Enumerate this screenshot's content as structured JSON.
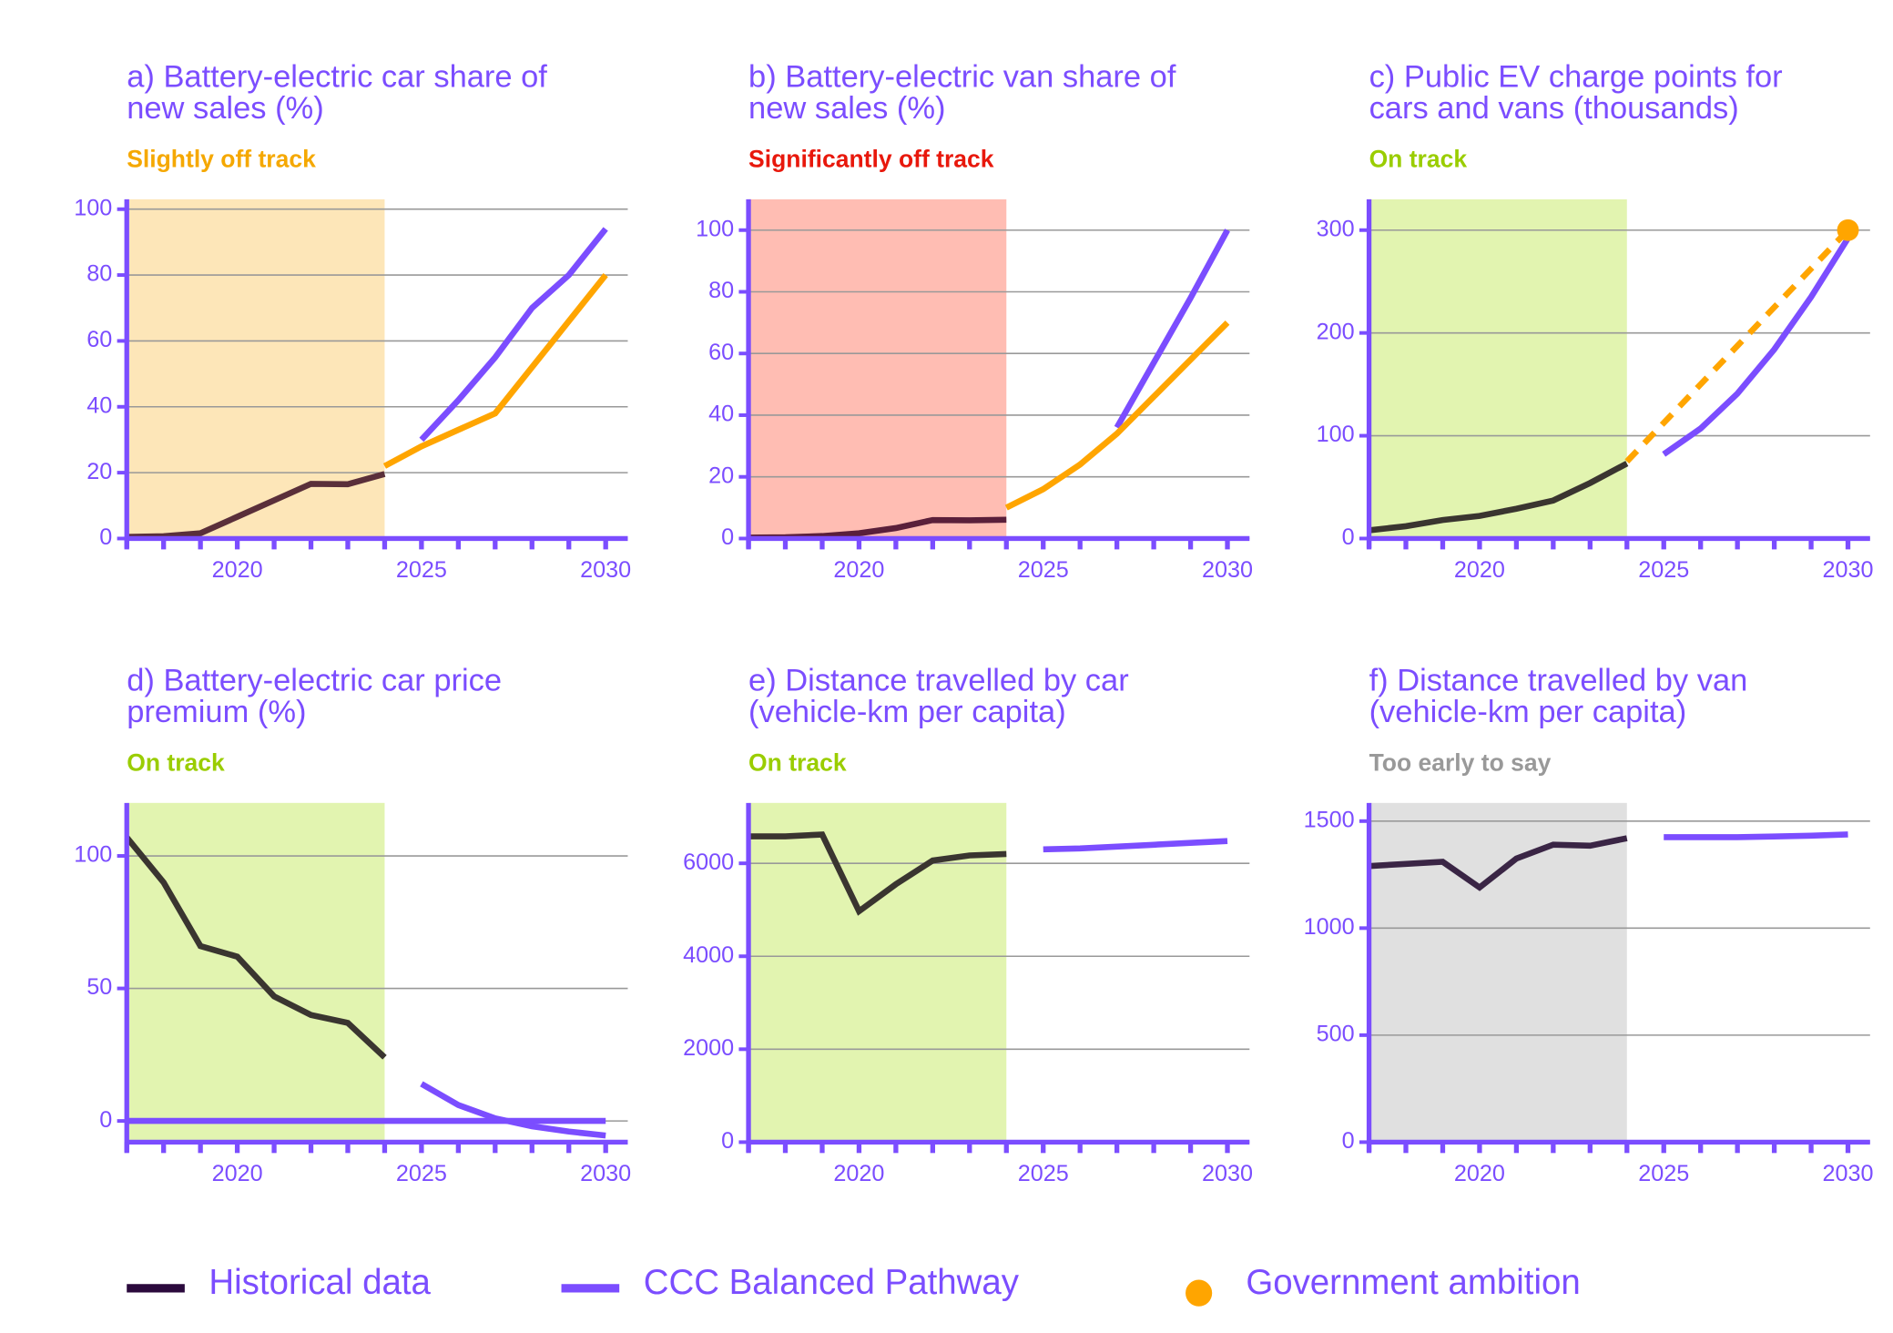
{
  "chart_data": [
    {
      "type": "line",
      "title": [
        "a) Battery-electric car share of",
        "new sales (%)"
      ],
      "status": "Slightly off track",
      "status_color": "#f5a800",
      "shade": [
        2017,
        2024
      ],
      "shade_color": "#fde6b8",
      "xlim": [
        2017,
        2030.6
      ],
      "xticks": [
        2020,
        2025,
        2030
      ],
      "xminorticks": [
        2017,
        2018,
        2019,
        2020,
        2021,
        2022,
        2023,
        2024,
        2025,
        2026,
        2027,
        2028,
        2029,
        2030
      ],
      "ylim": [
        0,
        103
      ],
      "yticks": [
        0,
        20,
        40,
        60,
        80,
        100
      ],
      "grid": true,
      "series": [
        {
          "name": "Historical data",
          "color": "#5a2f3a",
          "x": [
            2017,
            2018,
            2019,
            2020,
            2021,
            2022,
            2023,
            2024
          ],
          "values": [
            0.5,
            0.7,
            1.6,
            6.6,
            11.6,
            16.6,
            16.5,
            19.6
          ]
        },
        {
          "name": "CCC Balanced Pathway",
          "color": "#7b4dff",
          "x": [
            2025,
            2026,
            2027,
            2028,
            2029,
            2030
          ],
          "values": [
            30,
            42,
            55,
            70,
            80,
            94
          ]
        },
        {
          "color": "#ffa500",
          "x": [
            2024,
            2025,
            2026,
            2027,
            2028,
            2029,
            2030
          ],
          "values": [
            22,
            28,
            33,
            38,
            52,
            66,
            80
          ]
        }
      ]
    },
    {
      "type": "line",
      "title": [
        "b) Battery-electric van share of",
        "new sales (%)"
      ],
      "status": "Significantly off track",
      "status_color": "#e8180c",
      "shade": [
        2017,
        2024
      ],
      "shade_color": "#ffbdb3",
      "xlim": [
        2017,
        2030.6
      ],
      "xticks": [
        2020,
        2025,
        2030
      ],
      "xminorticks": [
        2017,
        2018,
        2019,
        2020,
        2021,
        2022,
        2023,
        2024,
        2025,
        2026,
        2027,
        2028,
        2029,
        2030
      ],
      "ylim": [
        0,
        110
      ],
      "yticks": [
        0,
        20,
        40,
        60,
        80,
        100
      ],
      "grid": true,
      "series": [
        {
          "name": "Historical data",
          "color": "#5a1f3a",
          "x": [
            2017,
            2018,
            2019,
            2020,
            2021,
            2022,
            2023,
            2024
          ],
          "values": [
            0.3,
            0.4,
            0.8,
            1.7,
            3.4,
            6,
            5.9,
            6.1
          ]
        },
        {
          "name": "CCC Balanced Pathway",
          "color": "#7b4dff",
          "x": [
            2027,
            2028,
            2029,
            2030
          ],
          "values": [
            36,
            57,
            78,
            100
          ]
        },
        {
          "color": "#ffa500",
          "x": [
            2024,
            2025,
            2026,
            2027,
            2028,
            2029,
            2030
          ],
          "values": [
            10,
            16,
            24,
            34,
            46,
            58,
            70
          ]
        }
      ]
    },
    {
      "type": "line",
      "title": [
        "c) Public EV charge points for",
        "cars and vans (thousands)"
      ],
      "status": "On track",
      "status_color": "#9acd00",
      "shade": [
        2017,
        2024
      ],
      "shade_color": "#e2f4b0",
      "xlim": [
        2017,
        2030.6
      ],
      "xticks": [
        2020,
        2025,
        2030
      ],
      "xminorticks": [
        2017,
        2018,
        2019,
        2020,
        2021,
        2022,
        2023,
        2024,
        2025,
        2026,
        2027,
        2028,
        2029,
        2030
      ],
      "ylim": [
        0,
        330
      ],
      "yticks": [
        0,
        100,
        200,
        300
      ],
      "grid": true,
      "series": [
        {
          "name": "Historical data",
          "color": "#3a3530",
          "x": [
            2017,
            2018,
            2019,
            2020,
            2021,
            2022,
            2023,
            2024
          ],
          "values": [
            8,
            12,
            18,
            22,
            29,
            37,
            54,
            73
          ]
        },
        {
          "name": "CCC Balanced Pathway",
          "color": "#7b4dff",
          "x": [
            2025,
            2026,
            2027,
            2028,
            2029,
            2030
          ],
          "values": [
            82,
            107,
            141,
            184,
            235,
            292
          ]
        },
        {
          "color": "#ffa500",
          "dash": true,
          "x": [
            2024,
            2030
          ],
          "values": [
            75,
            300
          ]
        }
      ],
      "points": [
        {
          "name": "Government ambition",
          "color": "#ffa500",
          "x": 2030,
          "value": 300
        }
      ]
    },
    {
      "type": "line",
      "title": [
        "d) Battery-electric car price",
        "premium (%)"
      ],
      "status": "On track",
      "status_color": "#9acd00",
      "shade": [
        2017,
        2024
      ],
      "shade_color": "#e2f4b0",
      "xlim": [
        2017,
        2030.6
      ],
      "xticks": [
        2020,
        2025,
        2030
      ],
      "xminorticks": [
        2017,
        2018,
        2019,
        2020,
        2021,
        2022,
        2023,
        2024,
        2025,
        2026,
        2027,
        2028,
        2029,
        2030
      ],
      "ylim": [
        -8,
        120
      ],
      "yticks": [
        0,
        50,
        100
      ],
      "grid": true,
      "series": [
        {
          "color": "#7b4dff",
          "x": [
            2017,
            2030
          ],
          "values": [
            0,
            0
          ]
        },
        {
          "name": "Historical data",
          "color": "#3a3530",
          "x": [
            2017,
            2018,
            2019,
            2020,
            2021,
            2022,
            2023,
            2024
          ],
          "values": [
            107,
            90,
            66,
            62,
            47,
            40,
            37,
            24
          ]
        },
        {
          "name": "CCC Balanced Pathway",
          "color": "#7b4dff",
          "x": [
            2025,
            2026,
            2027,
            2028,
            2029,
            2030
          ],
          "values": [
            14,
            6,
            1,
            -2,
            -4,
            -5.5
          ]
        }
      ]
    },
    {
      "type": "line",
      "title": [
        "e) Distance travelled by car",
        "(vehicle-km per capita)"
      ],
      "status": "On track",
      "status_color": "#9acd00",
      "shade": [
        2017,
        2024
      ],
      "shade_color": "#e2f4b0",
      "xlim": [
        2017,
        2030.6
      ],
      "xticks": [
        2020,
        2025,
        2030
      ],
      "xminorticks": [
        2017,
        2018,
        2019,
        2020,
        2021,
        2022,
        2023,
        2024,
        2025,
        2026,
        2027,
        2028,
        2029,
        2030
      ],
      "ylim": [
        0,
        7300
      ],
      "yticks": [
        0,
        2000,
        4000,
        6000
      ],
      "grid": true,
      "series": [
        {
          "name": "Historical data",
          "color": "#3a3530",
          "x": [
            2017,
            2018,
            2019,
            2020,
            2021,
            2022,
            2023,
            2024
          ],
          "values": [
            6580,
            6580,
            6620,
            4970,
            5550,
            6060,
            6170,
            6200
          ]
        },
        {
          "name": "CCC Balanced Pathway",
          "color": "#7b4dff",
          "x": [
            2025,
            2026,
            2027,
            2028,
            2029,
            2030
          ],
          "values": [
            6300,
            6320,
            6360,
            6400,
            6440,
            6480
          ]
        }
      ]
    },
    {
      "type": "line",
      "title": [
        "f) Distance travelled by van",
        "(vehicle-km per capita)"
      ],
      "status": "Too early to say",
      "status_color": "#999999",
      "shade": [
        2017,
        2024
      ],
      "shade_color": "#e0e0e0",
      "xlim": [
        2017,
        2030.6
      ],
      "xticks": [
        2020,
        2025,
        2030
      ],
      "xminorticks": [
        2017,
        2018,
        2019,
        2020,
        2021,
        2022,
        2023,
        2024,
        2025,
        2026,
        2027,
        2028,
        2029,
        2030
      ],
      "ylim": [
        0,
        1585
      ],
      "yticks": [
        0,
        500,
        1000,
        1500
      ],
      "grid": true,
      "series": [
        {
          "name": "Historical data",
          "color": "#3a2545",
          "x": [
            2017,
            2018,
            2019,
            2020,
            2021,
            2022,
            2023,
            2024
          ],
          "values": [
            1290,
            1300,
            1310,
            1190,
            1325,
            1390,
            1385,
            1420
          ]
        },
        {
          "name": "CCC Balanced Pathway",
          "color": "#7b4dff",
          "x": [
            2025,
            2026,
            2027,
            2028,
            2029,
            2030
          ],
          "values": [
            1425,
            1425,
            1425,
            1428,
            1432,
            1438
          ]
        }
      ]
    }
  ],
  "legend": [
    {
      "label": "Historical data",
      "color": "#2b0a3d",
      "marker": "line"
    },
    {
      "label": "CCC Balanced Pathway",
      "color": "#7b4dff",
      "marker": "line"
    },
    {
      "label": "Government ambition",
      "color": "#ffa500",
      "marker": "dot"
    }
  ]
}
